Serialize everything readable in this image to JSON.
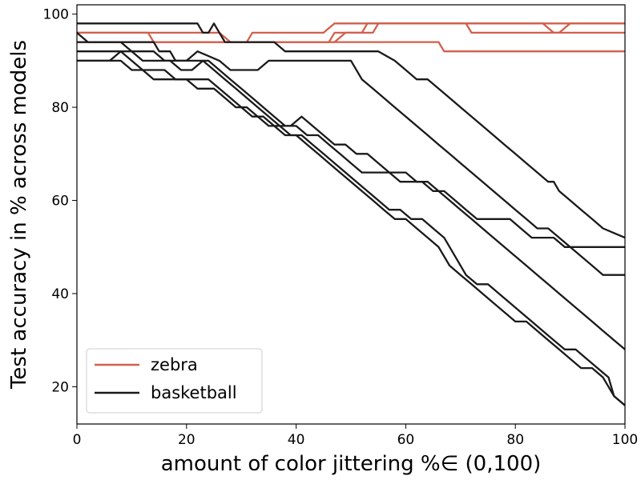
{
  "chart_data": {
    "type": "line",
    "title": "",
    "xlabel": "amount of color jittering %∈ (0,100)",
    "ylabel": "Test accuracy in % across models",
    "xlim": [
      0,
      100
    ],
    "ylim": [
      12,
      102
    ],
    "xticks": [
      0,
      20,
      40,
      60,
      80,
      100
    ],
    "yticks": [
      20,
      40,
      60,
      80,
      100
    ],
    "grid": false,
    "legend": {
      "placement": "lower-left",
      "entries": [
        {
          "label": "zebra",
          "color": "#d1604d"
        },
        {
          "label": "basketball",
          "color": "#1a1a1a"
        }
      ]
    },
    "series": [
      {
        "group": "zebra",
        "color": "#d1604d",
        "points": [
          [
            0,
            96
          ],
          [
            13,
            96
          ],
          [
            14,
            94
          ],
          [
            46,
            94
          ],
          [
            47,
            96
          ],
          [
            54,
            96
          ],
          [
            55,
            98
          ],
          [
            100,
            98
          ]
        ]
      },
      {
        "group": "zebra",
        "color": "#d1604d",
        "points": [
          [
            0,
            94
          ],
          [
            66,
            94
          ],
          [
            67,
            92
          ],
          [
            100,
            92
          ]
        ]
      },
      {
        "group": "zebra",
        "color": "#d1604d",
        "points": [
          [
            0,
            96
          ],
          [
            26,
            96
          ],
          [
            28,
            94
          ],
          [
            31,
            94
          ],
          [
            32,
            96
          ],
          [
            45,
            96
          ],
          [
            47,
            98
          ],
          [
            71,
            98
          ],
          [
            72,
            96
          ],
          [
            88,
            96
          ],
          [
            90,
            98
          ],
          [
            100,
            98
          ]
        ]
      },
      {
        "group": "zebra",
        "color": "#d1604d",
        "points": [
          [
            0,
            94
          ],
          [
            47,
            94
          ],
          [
            49,
            96
          ],
          [
            52,
            96
          ],
          [
            53,
            98
          ],
          [
            85,
            98
          ],
          [
            87,
            96
          ],
          [
            100,
            96
          ]
        ]
      },
      {
        "group": "basketball",
        "color": "#1a1a1a",
        "points": [
          [
            0,
            98
          ],
          [
            22,
            98
          ],
          [
            23,
            96
          ],
          [
            24,
            96
          ],
          [
            25,
            98
          ],
          [
            26,
            96
          ],
          [
            27,
            94
          ],
          [
            36,
            94
          ],
          [
            38,
            92
          ],
          [
            55,
            92
          ],
          [
            58,
            90
          ],
          [
            60,
            88
          ],
          [
            62,
            86
          ],
          [
            64,
            86
          ],
          [
            66,
            84
          ],
          [
            68,
            82
          ],
          [
            70,
            80
          ],
          [
            72,
            78
          ],
          [
            74,
            76
          ],
          [
            76,
            74
          ],
          [
            78,
            72
          ],
          [
            80,
            70
          ],
          [
            82,
            68
          ],
          [
            84,
            66
          ],
          [
            86,
            64
          ],
          [
            87,
            64
          ],
          [
            88,
            62
          ],
          [
            90,
            60
          ],
          [
            92,
            58
          ],
          [
            94,
            56
          ],
          [
            96,
            54
          ],
          [
            98,
            53
          ],
          [
            100,
            52
          ]
        ]
      },
      {
        "group": "basketball",
        "color": "#1a1a1a",
        "points": [
          [
            0,
            94
          ],
          [
            14,
            94
          ],
          [
            15,
            92
          ],
          [
            17,
            92
          ],
          [
            18,
            90
          ],
          [
            20,
            90
          ],
          [
            22,
            92
          ],
          [
            26,
            90
          ],
          [
            28,
            88
          ],
          [
            33,
            88
          ],
          [
            35,
            90
          ],
          [
            45,
            90
          ],
          [
            50,
            90
          ],
          [
            52,
            86
          ],
          [
            54,
            84
          ],
          [
            56,
            82
          ],
          [
            58,
            80
          ],
          [
            60,
            78
          ],
          [
            62,
            76
          ],
          [
            64,
            74
          ],
          [
            66,
            72
          ],
          [
            68,
            70
          ],
          [
            70,
            68
          ],
          [
            72,
            66
          ],
          [
            74,
            64
          ],
          [
            76,
            62
          ],
          [
            78,
            60
          ],
          [
            80,
            58
          ],
          [
            82,
            56
          ],
          [
            84,
            54
          ],
          [
            86,
            54
          ],
          [
            88,
            52
          ],
          [
            90,
            50
          ],
          [
            92,
            48
          ],
          [
            94,
            46
          ],
          [
            96,
            44
          ],
          [
            98,
            44
          ],
          [
            100,
            44
          ]
        ]
      },
      {
        "group": "basketball",
        "color": "#1a1a1a",
        "points": [
          [
            0,
            92
          ],
          [
            10,
            92
          ],
          [
            12,
            90
          ],
          [
            17,
            90
          ],
          [
            19,
            88
          ],
          [
            21,
            88
          ],
          [
            23,
            90
          ],
          [
            25,
            88
          ],
          [
            27,
            86
          ],
          [
            29,
            84
          ],
          [
            31,
            82
          ],
          [
            33,
            80
          ],
          [
            35,
            78
          ],
          [
            37,
            76
          ],
          [
            39,
            76
          ],
          [
            41,
            78
          ],
          [
            43,
            76
          ],
          [
            45,
            74
          ],
          [
            47,
            72
          ],
          [
            49,
            72
          ],
          [
            51,
            70
          ],
          [
            53,
            70
          ],
          [
            55,
            68
          ],
          [
            57,
            66
          ],
          [
            59,
            64
          ],
          [
            61,
            64
          ],
          [
            63,
            64
          ],
          [
            65,
            62
          ],
          [
            67,
            62
          ],
          [
            69,
            60
          ],
          [
            71,
            58
          ],
          [
            73,
            56
          ],
          [
            75,
            56
          ],
          [
            77,
            56
          ],
          [
            79,
            56
          ],
          [
            81,
            54
          ],
          [
            83,
            52
          ],
          [
            85,
            52
          ],
          [
            87,
            52
          ],
          [
            89,
            50
          ],
          [
            91,
            50
          ],
          [
            93,
            50
          ],
          [
            95,
            50
          ],
          [
            97,
            50
          ],
          [
            100,
            50
          ]
        ]
      },
      {
        "group": "basketball",
        "color": "#1a1a1a",
        "points": [
          [
            0,
            90
          ],
          [
            8,
            90
          ],
          [
            10,
            88
          ],
          [
            12,
            88
          ],
          [
            14,
            86
          ],
          [
            20,
            86
          ],
          [
            22,
            84
          ],
          [
            25,
            84
          ],
          [
            27,
            82
          ],
          [
            29,
            80
          ],
          [
            31,
            80
          ],
          [
            33,
            78
          ],
          [
            35,
            76
          ],
          [
            37,
            76
          ],
          [
            39,
            74
          ],
          [
            41,
            74
          ],
          [
            43,
            72
          ],
          [
            45,
            70
          ],
          [
            47,
            68
          ],
          [
            49,
            66
          ],
          [
            51,
            64
          ],
          [
            53,
            62
          ],
          [
            55,
            60
          ],
          [
            57,
            58
          ],
          [
            59,
            58
          ],
          [
            61,
            56
          ],
          [
            63,
            56
          ],
          [
            65,
            54
          ],
          [
            67,
            52
          ],
          [
            69,
            48
          ],
          [
            71,
            44
          ],
          [
            73,
            42
          ],
          [
            75,
            42
          ],
          [
            77,
            40
          ],
          [
            79,
            38
          ],
          [
            81,
            36
          ],
          [
            83,
            34
          ],
          [
            85,
            32
          ],
          [
            87,
            30
          ],
          [
            89,
            28
          ],
          [
            91,
            28
          ],
          [
            93,
            26
          ],
          [
            95,
            24
          ],
          [
            97,
            22
          ],
          [
            98,
            18
          ],
          [
            100,
            16
          ]
        ]
      },
      {
        "group": "basketball",
        "color": "#1a1a1a",
        "points": [
          [
            0,
            90
          ],
          [
            6,
            90
          ],
          [
            8,
            92
          ],
          [
            10,
            90
          ],
          [
            12,
            88
          ],
          [
            16,
            88
          ],
          [
            18,
            86
          ],
          [
            24,
            86
          ],
          [
            26,
            84
          ],
          [
            28,
            82
          ],
          [
            30,
            80
          ],
          [
            32,
            78
          ],
          [
            34,
            78
          ],
          [
            36,
            76
          ],
          [
            38,
            74
          ],
          [
            40,
            74
          ],
          [
            42,
            72
          ],
          [
            44,
            70
          ],
          [
            46,
            68
          ],
          [
            48,
            66
          ],
          [
            50,
            64
          ],
          [
            52,
            62
          ],
          [
            54,
            60
          ],
          [
            56,
            58
          ],
          [
            58,
            56
          ],
          [
            60,
            56
          ],
          [
            62,
            54
          ],
          [
            64,
            52
          ],
          [
            66,
            50
          ],
          [
            68,
            46
          ],
          [
            70,
            44
          ],
          [
            72,
            42
          ],
          [
            74,
            40
          ],
          [
            76,
            38
          ],
          [
            78,
            36
          ],
          [
            80,
            34
          ],
          [
            82,
            34
          ],
          [
            84,
            32
          ],
          [
            86,
            30
          ],
          [
            88,
            28
          ],
          [
            90,
            26
          ],
          [
            92,
            24
          ],
          [
            94,
            24
          ],
          [
            96,
            22
          ],
          [
            98,
            18
          ],
          [
            100,
            16
          ]
        ]
      },
      {
        "group": "basketball",
        "color": "#1a1a1a",
        "points": [
          [
            0,
            96
          ],
          [
            2,
            94
          ],
          [
            8,
            94
          ],
          [
            10,
            92
          ],
          [
            14,
            92
          ],
          [
            16,
            90
          ],
          [
            20,
            90
          ],
          [
            22,
            90
          ],
          [
            24,
            90
          ],
          [
            26,
            88
          ],
          [
            28,
            86
          ],
          [
            30,
            84
          ],
          [
            32,
            82
          ],
          [
            34,
            80
          ],
          [
            36,
            78
          ],
          [
            38,
            76
          ],
          [
            40,
            76
          ],
          [
            42,
            74
          ],
          [
            44,
            74
          ],
          [
            46,
            72
          ],
          [
            48,
            70
          ],
          [
            50,
            68
          ],
          [
            52,
            66
          ],
          [
            54,
            66
          ],
          [
            56,
            66
          ],
          [
            58,
            66
          ],
          [
            60,
            66
          ],
          [
            62,
            64
          ],
          [
            64,
            64
          ],
          [
            66,
            62
          ],
          [
            68,
            60
          ],
          [
            70,
            58
          ],
          [
            72,
            56
          ],
          [
            74,
            54
          ],
          [
            76,
            52
          ],
          [
            78,
            50
          ],
          [
            80,
            48
          ],
          [
            82,
            46
          ],
          [
            84,
            44
          ],
          [
            86,
            42
          ],
          [
            88,
            40
          ],
          [
            90,
            38
          ],
          [
            92,
            36
          ],
          [
            94,
            34
          ],
          [
            96,
            32
          ],
          [
            98,
            30
          ],
          [
            100,
            28
          ]
        ]
      }
    ]
  }
}
